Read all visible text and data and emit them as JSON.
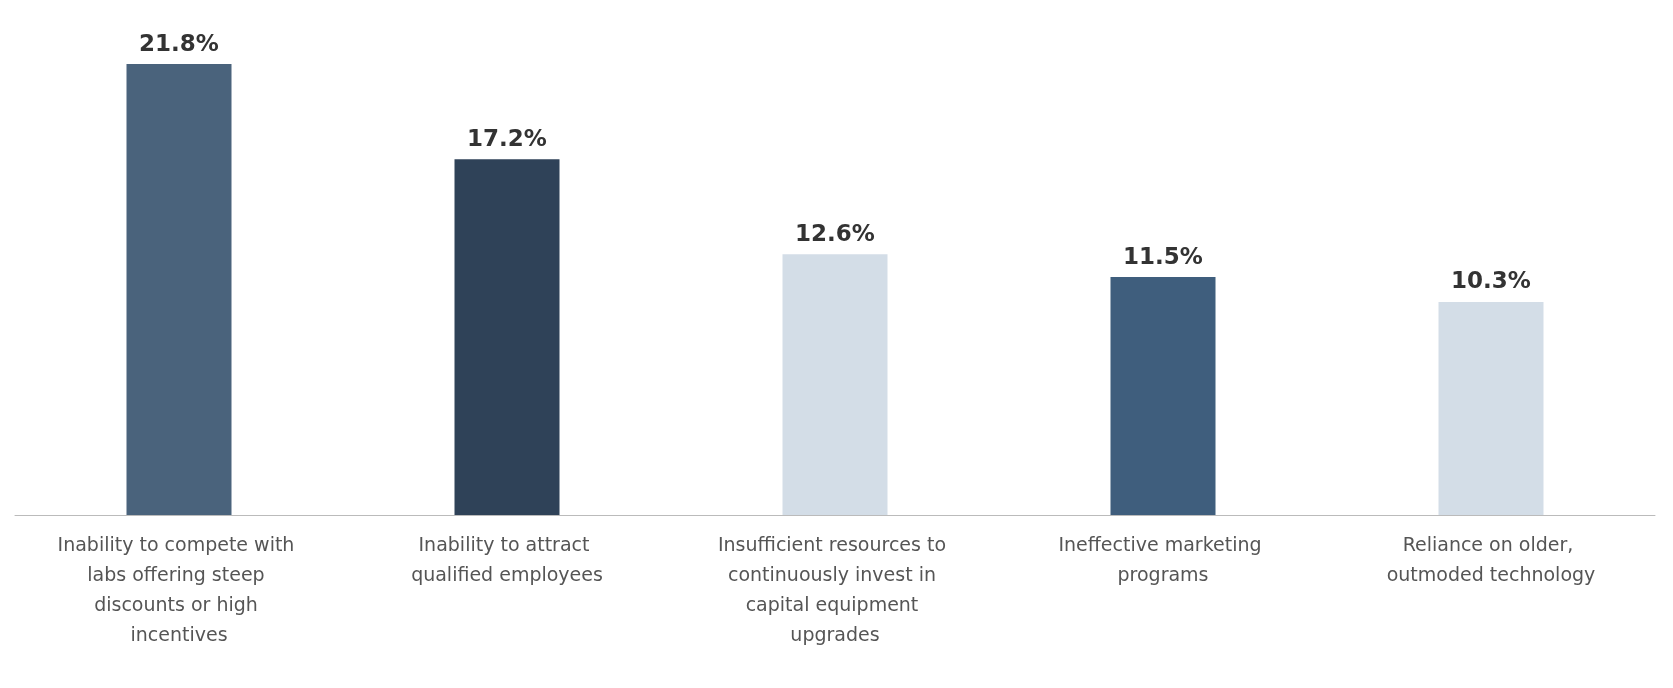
{
  "chart_data": {
    "type": "bar",
    "categories": [
      "Inability to compete with labs offering steep discounts or high incentives",
      "Inability to attract qualified employees",
      "Insufficient resources to continuously invest in capital equipment upgrades",
      "Ineffective marketing programs",
      "Reliance on older, outmoded technology"
    ],
    "values": [
      21.8,
      17.2,
      12.6,
      11.5,
      10.3
    ],
    "colors": [
      "#4a637c",
      "#2f4258",
      "#d3dde7",
      "#3f5e7d",
      "#d3dde7"
    ],
    "value_labels": [
      "21.8%",
      "17.2%",
      "12.6%",
      "11.5%",
      "10.3%"
    ]
  }
}
